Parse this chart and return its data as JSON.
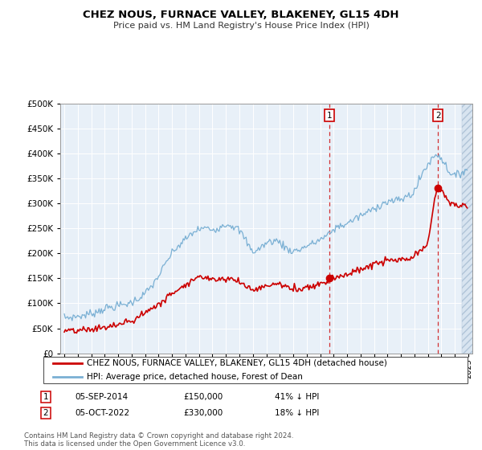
{
  "title": "CHEZ NOUS, FURNACE VALLEY, BLAKENEY, GL15 4DH",
  "subtitle": "Price paid vs. HM Land Registry's House Price Index (HPI)",
  "legend_line1": "CHEZ NOUS, FURNACE VALLEY, BLAKENEY, GL15 4DH (detached house)",
  "legend_line2": "HPI: Average price, detached house, Forest of Dean",
  "annotation1_label": "1",
  "annotation1_date": "05-SEP-2014",
  "annotation1_price": "£150,000",
  "annotation1_hpi": "41% ↓ HPI",
  "annotation2_label": "2",
  "annotation2_date": "05-OCT-2022",
  "annotation2_price": "£330,000",
  "annotation2_hpi": "18% ↓ HPI",
  "footer": "Contains HM Land Registry data © Crown copyright and database right 2024.\nThis data is licensed under the Open Government Licence v3.0.",
  "price_color": "#cc0000",
  "hpi_color": "#7ab0d4",
  "background_color": "#e8f0f8",
  "ylim": [
    0,
    500000
  ],
  "yticks": [
    0,
    50000,
    100000,
    150000,
    200000,
    250000,
    300000,
    350000,
    400000,
    450000,
    500000
  ],
  "sale1_year": 2014.67,
  "sale1_price": 150000,
  "sale2_year": 2022.75,
  "sale2_price": 330000
}
